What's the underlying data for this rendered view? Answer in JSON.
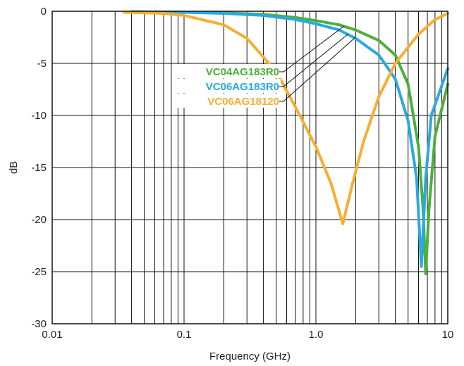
{
  "chart_data": {
    "type": "line",
    "title": "",
    "xlabel": "Frequency (GHz)",
    "ylabel": "dB",
    "xscale": "log",
    "xlim": [
      0.01,
      10
    ],
    "ylim": [
      -30,
      0
    ],
    "grid": true,
    "legend": "inline-left-with-leaders",
    "x_ticks": [
      {
        "value": 0.01,
        "label": "0.01"
      },
      {
        "value": 0.1,
        "label": "0.1"
      },
      {
        "value": 1,
        "label": "1.0"
      },
      {
        "value": 10,
        "label": "10"
      }
    ],
    "y_ticks": [
      {
        "value": 0,
        "label": "0"
      },
      {
        "value": -5,
        "label": "-5"
      },
      {
        "value": -10,
        "label": "-10"
      },
      {
        "value": -15,
        "label": "-15"
      },
      {
        "value": -20,
        "label": "-20"
      },
      {
        "value": -25,
        "label": "-25"
      },
      {
        "value": -30,
        "label": "-30"
      }
    ],
    "series": [
      {
        "name": "VC04AG183R0",
        "color": "#4daf3c",
        "points": [
          [
            0.04,
            -0.05
          ],
          [
            0.1,
            -0.08
          ],
          [
            0.2,
            -0.15
          ],
          [
            0.4,
            -0.3
          ],
          [
            0.7,
            -0.6
          ],
          [
            1.0,
            -0.9
          ],
          [
            1.5,
            -1.3
          ],
          [
            2.0,
            -1.8
          ],
          [
            3.0,
            -2.8
          ],
          [
            4.0,
            -4.2
          ],
          [
            5.0,
            -7.0
          ],
          [
            6.0,
            -13.0
          ],
          [
            6.5,
            -19.0
          ],
          [
            6.8,
            -25.2
          ],
          [
            7.2,
            -19.0
          ],
          [
            8.0,
            -12.0
          ],
          [
            10.0,
            -7.0
          ]
        ]
      },
      {
        "name": "VC06AG183R0",
        "color": "#29a9e0",
        "points": [
          [
            0.04,
            -0.05
          ],
          [
            0.1,
            -0.1
          ],
          [
            0.2,
            -0.2
          ],
          [
            0.4,
            -0.4
          ],
          [
            0.7,
            -0.8
          ],
          [
            1.0,
            -1.2
          ],
          [
            1.5,
            -1.8
          ],
          [
            2.0,
            -2.6
          ],
          [
            3.0,
            -4.2
          ],
          [
            4.0,
            -6.5
          ],
          [
            5.0,
            -10.5
          ],
          [
            5.8,
            -16.0
          ],
          [
            6.3,
            -24.5
          ],
          [
            6.8,
            -16.0
          ],
          [
            7.5,
            -10.0
          ],
          [
            10.0,
            -5.5
          ]
        ]
      },
      {
        "name": "VC06AG18120",
        "color": "#f7ae31",
        "points": [
          [
            0.035,
            -0.1
          ],
          [
            0.07,
            -0.2
          ],
          [
            0.1,
            -0.4
          ],
          [
            0.2,
            -1.3
          ],
          [
            0.3,
            -2.6
          ],
          [
            0.5,
            -5.8
          ],
          [
            0.7,
            -9.2
          ],
          [
            1.0,
            -13.0
          ],
          [
            1.3,
            -16.5
          ],
          [
            1.6,
            -20.4
          ],
          [
            1.9,
            -16.5
          ],
          [
            2.3,
            -12.5
          ],
          [
            3.0,
            -8.2
          ],
          [
            4.0,
            -5.0
          ],
          [
            6.0,
            -2.2
          ],
          [
            8.0,
            -0.8
          ],
          [
            10.0,
            -0.2
          ]
        ]
      }
    ],
    "annotations": [
      {
        "text": "VC04AG183R0",
        "color": "#4daf3c"
      },
      {
        "text": "VC06AG183R0",
        "color": "#29a9e0"
      },
      {
        "text": "VC06AG18120",
        "color": "#f7ae31"
      }
    ]
  }
}
